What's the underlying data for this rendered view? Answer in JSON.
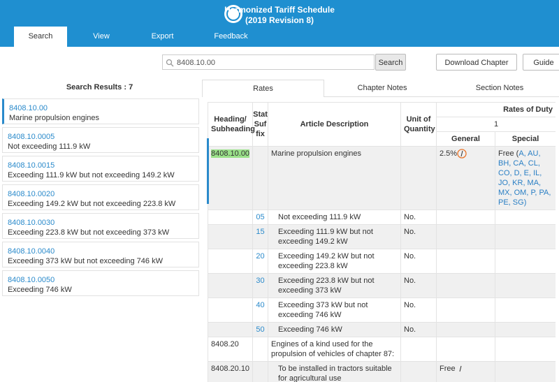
{
  "header": {
    "title": "Harmonized Tariff Schedule",
    "subtitle": "(2019 Revision 8)"
  },
  "tabs": [
    "Search",
    "View",
    "Export",
    "Feedback"
  ],
  "search": {
    "query": "8408.10.00",
    "button": "Search",
    "download": "Download Chapter",
    "guide": "Guide"
  },
  "results": {
    "label": "Search Results : 7",
    "items": [
      {
        "code": "8408.10.00",
        "desc": "Marine propulsion engines"
      },
      {
        "code": "8408.10.0005",
        "desc": "Not exceeding 111.9 kW"
      },
      {
        "code": "8408.10.0015",
        "desc": "Exceeding 111.9 kW but not exceeding 149.2 kW"
      },
      {
        "code": "8408.10.0020",
        "desc": "Exceeding 149.2 kW but not exceeding 223.8 kW"
      },
      {
        "code": "8408.10.0030",
        "desc": "Exceeding 223.8 kW but not exceeding 373 kW"
      },
      {
        "code": "8408.10.0040",
        "desc": "Exceeding 373 kW but not exceeding 746 kW"
      },
      {
        "code": "8408.10.0050",
        "desc": "Exceeding 746 kW"
      }
    ]
  },
  "content_tabs": [
    "Rates",
    "Chapter Notes",
    "Section Notes"
  ],
  "table": {
    "headers": {
      "heading": "Heading/ Subheading",
      "stat": "Stat Suf fix",
      "desc": "Article Description",
      "unit": "Unit of Quantity",
      "rates": "Rates of Duty",
      "column": "1",
      "general": "General",
      "special": "Special"
    },
    "rows": [
      {
        "heading": "8408.10.00",
        "stat": "",
        "desc": "Marine propulsion engines",
        "unit": "",
        "general": "2.5%",
        "special_prefix": "Free (",
        "special_codes": "A, AU, BH, CA, CL, CO, D, E, IL, JO, KR, MA, MX, OM, P, PA, PE, SG",
        "special_suffix": ")"
      },
      {
        "heading": "",
        "stat": "05",
        "desc": "Not exceeding 111.9 kW",
        "unit": "No.",
        "general": ""
      },
      {
        "heading": "",
        "stat": "15",
        "desc": "Exceeding 111.9 kW but not exceeding 149.2 kW",
        "unit": "No.",
        "general": ""
      },
      {
        "heading": "",
        "stat": "20",
        "desc": "Exceeding 149.2 kW but not exceeding 223.8 kW",
        "unit": "No.",
        "general": ""
      },
      {
        "heading": "",
        "stat": "30",
        "desc": "Exceeding 223.8 kW but not exceeding 373 kW",
        "unit": "No.",
        "general": ""
      },
      {
        "heading": "",
        "stat": "40",
        "desc": "Exceeding 373 kW but not exceeding 746 kW",
        "unit": "No.",
        "general": ""
      },
      {
        "heading": "",
        "stat": "50",
        "desc": "Exceeding 746 kW",
        "unit": "No.",
        "general": ""
      },
      {
        "heading": "8408.20",
        "stat": "",
        "desc": "Engines of a kind used for the propulsion of vehicles of chapter 87:",
        "unit": "",
        "general": ""
      },
      {
        "heading": "8408.20.10",
        "stat": "",
        "desc": "To be installed in tractors suitable for agricultural use",
        "unit": "",
        "general": "Free"
      }
    ]
  }
}
